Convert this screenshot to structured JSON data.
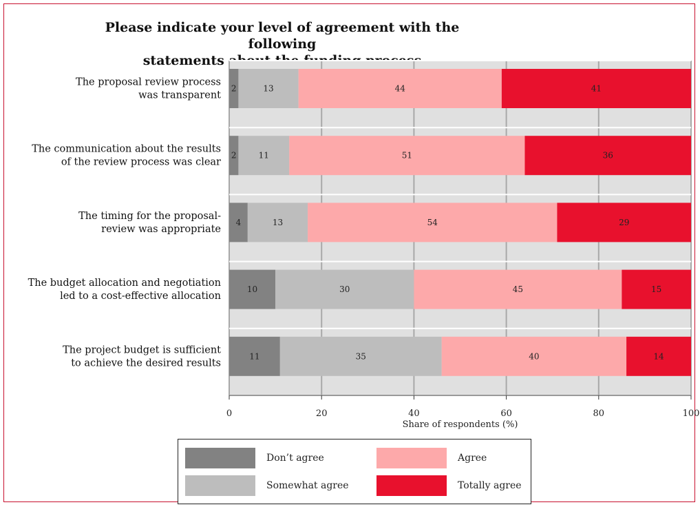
{
  "chart_data": {
    "type": "bar",
    "orientation": "horizontal",
    "stacked": true,
    "title": "Please indicate your level of agreement with the following statements about the funding process",
    "title_lines": [
      "Please indicate your level of agreement with the following",
      "statements about the funding process"
    ],
    "xlabel": "Share of respondents (%)",
    "ylabel": "",
    "xlim": [
      0,
      100
    ],
    "xticks": [
      0,
      20,
      40,
      60,
      80,
      100
    ],
    "xtick_labels": [
      "0",
      "20",
      "40",
      "60",
      "80",
      "100"
    ],
    "grid": true,
    "legend_position": "bottom",
    "categories": [
      [
        "The proposal review process",
        "was transparent"
      ],
      [
        "The communication about the results",
        "of the review process was clear"
      ],
      [
        "The timing for the proposal-",
        "review was appropriate"
      ],
      [
        "The budget allocation and negotiation",
        "led to a cost-effective allocation"
      ],
      [
        "The project budget is sufficient",
        "to achieve the desired results"
      ]
    ],
    "series": [
      {
        "name": "Don’t agree",
        "color": "#828282",
        "values": [
          2,
          2,
          4,
          10,
          11
        ]
      },
      {
        "name": "Somewhat agree",
        "color": "#bdbdbd",
        "values": [
          13,
          11,
          13,
          30,
          35
        ]
      },
      {
        "name": "Agree",
        "color": "#fda9aa",
        "values": [
          44,
          51,
          54,
          45,
          40
        ]
      },
      {
        "name": "Totally agree",
        "color": "#e8112d",
        "values": [
          41,
          36,
          29,
          15,
          14
        ]
      }
    ]
  }
}
